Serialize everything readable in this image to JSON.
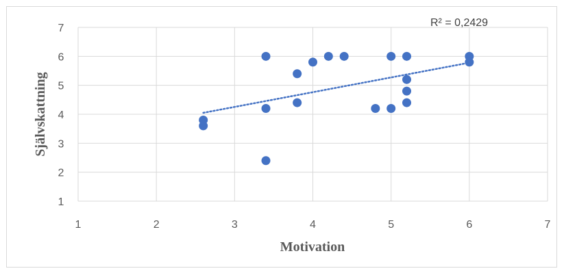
{
  "chart_data": {
    "type": "scatter",
    "xlabel": "Motivation",
    "ylabel": "Självskattning",
    "xlim": [
      1,
      7
    ],
    "ylim": [
      1,
      7
    ],
    "x_ticks": [
      "1",
      "2",
      "3",
      "4",
      "5",
      "6",
      "7"
    ],
    "y_ticks": [
      "1",
      "2",
      "3",
      "4",
      "5",
      "6",
      "7"
    ],
    "grid": true,
    "legend": "none",
    "point_color": "#4472C4",
    "points": [
      {
        "x": 2.6,
        "y": 3.8
      },
      {
        "x": 2.6,
        "y": 3.6
      },
      {
        "x": 3.4,
        "y": 6.0
      },
      {
        "x": 3.4,
        "y": 4.2
      },
      {
        "x": 3.4,
        "y": 2.4
      },
      {
        "x": 3.8,
        "y": 5.4
      },
      {
        "x": 3.8,
        "y": 4.4
      },
      {
        "x": 4.0,
        "y": 5.8
      },
      {
        "x": 4.2,
        "y": 6.0
      },
      {
        "x": 4.4,
        "y": 6.0
      },
      {
        "x": 4.8,
        "y": 4.2
      },
      {
        "x": 5.0,
        "y": 6.0
      },
      {
        "x": 5.0,
        "y": 4.2
      },
      {
        "x": 5.2,
        "y": 6.0
      },
      {
        "x": 5.2,
        "y": 5.2
      },
      {
        "x": 5.2,
        "y": 4.8
      },
      {
        "x": 5.2,
        "y": 4.4
      },
      {
        "x": 6.0,
        "y": 6.0
      },
      {
        "x": 6.0,
        "y": 5.8
      }
    ],
    "trendline": {
      "type": "linear",
      "style": "dotted",
      "color": "#4472C4",
      "start": {
        "x": 2.6,
        "y": 4.05
      },
      "end": {
        "x": 6.0,
        "y": 5.78
      },
      "r2_label": "R² = 0,2429"
    }
  }
}
